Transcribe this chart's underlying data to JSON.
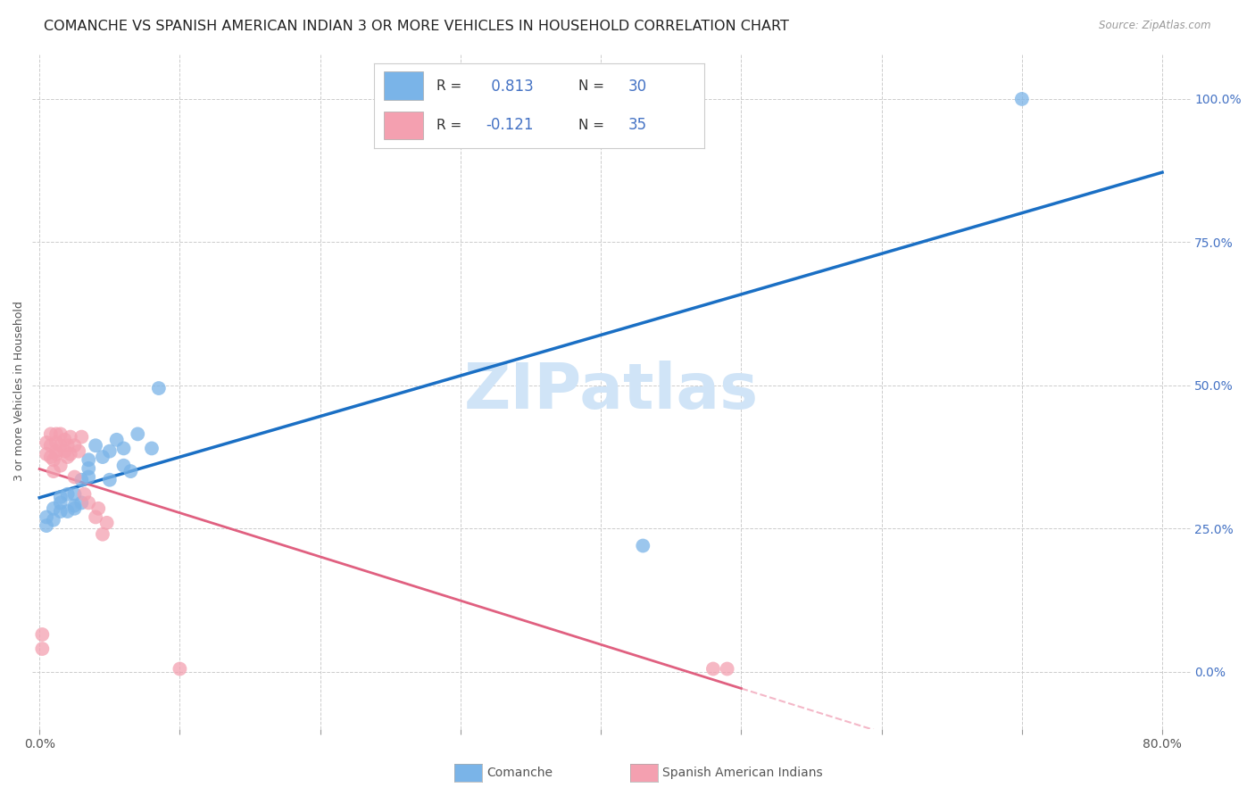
{
  "title": "COMANCHE VS SPANISH AMERICAN INDIAN 3 OR MORE VEHICLES IN HOUSEHOLD CORRELATION CHART",
  "source": "Source: ZipAtlas.com",
  "ylabel": "3 or more Vehicles in Household",
  "xlim": [
    0.0,
    0.8
  ],
  "ylim": [
    0.0,
    1.05
  ],
  "comanche_R": "0.813",
  "comanche_N": "30",
  "spanish_R": "-0.121",
  "spanish_N": "35",
  "comanche_color": "#7ab4e8",
  "spanish_color": "#f4a0b0",
  "comanche_line_color": "#1a6fc4",
  "spanish_line_solid_color": "#e06080",
  "spanish_line_dash_color": "#f4b8c8",
  "background_color": "#ffffff",
  "grid_color": "#cccccc",
  "axis_label_color": "#4472c4",
  "watermark_color": "#d0e4f7",
  "watermark_fontsize": 52,
  "comanche_x": [
    0.005,
    0.005,
    0.01,
    0.01,
    0.015,
    0.015,
    0.015,
    0.02,
    0.02,
    0.025,
    0.025,
    0.025,
    0.03,
    0.03,
    0.035,
    0.035,
    0.035,
    0.04,
    0.045,
    0.05,
    0.05,
    0.055,
    0.06,
    0.06,
    0.065,
    0.07,
    0.08,
    0.085,
    0.43,
    0.7
  ],
  "comanche_y": [
    0.255,
    0.27,
    0.265,
    0.285,
    0.28,
    0.295,
    0.305,
    0.28,
    0.31,
    0.29,
    0.31,
    0.285,
    0.295,
    0.335,
    0.37,
    0.355,
    0.34,
    0.395,
    0.375,
    0.385,
    0.335,
    0.405,
    0.39,
    0.36,
    0.35,
    0.415,
    0.39,
    0.495,
    0.22,
    1.0
  ],
  "spanish_x": [
    0.002,
    0.002,
    0.005,
    0.005,
    0.008,
    0.008,
    0.008,
    0.01,
    0.01,
    0.012,
    0.012,
    0.012,
    0.012,
    0.015,
    0.015,
    0.015,
    0.018,
    0.018,
    0.02,
    0.02,
    0.022,
    0.022,
    0.025,
    0.025,
    0.028,
    0.03,
    0.032,
    0.035,
    0.04,
    0.042,
    0.045,
    0.048,
    0.1,
    0.48,
    0.49
  ],
  "spanish_y": [
    0.04,
    0.065,
    0.38,
    0.4,
    0.375,
    0.395,
    0.415,
    0.35,
    0.37,
    0.385,
    0.4,
    0.415,
    0.38,
    0.36,
    0.395,
    0.415,
    0.385,
    0.405,
    0.375,
    0.395,
    0.38,
    0.41,
    0.34,
    0.395,
    0.385,
    0.41,
    0.31,
    0.295,
    0.27,
    0.285,
    0.24,
    0.26,
    0.005,
    0.005,
    0.005
  ]
}
